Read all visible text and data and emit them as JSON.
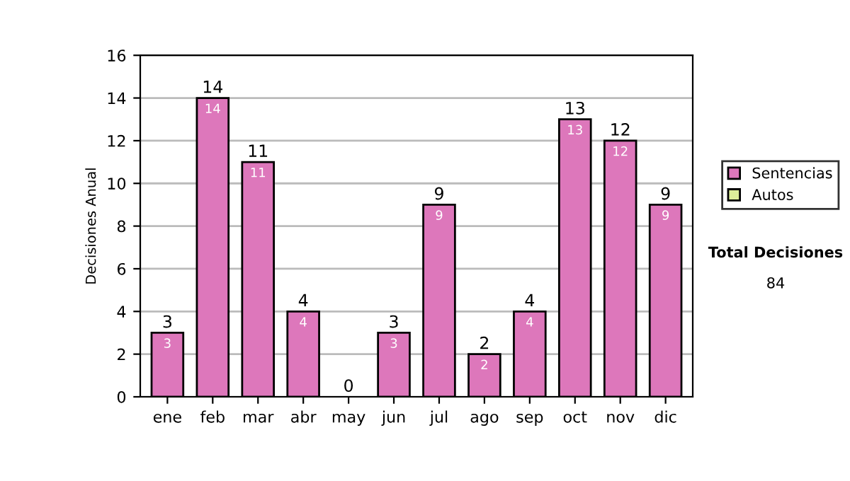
{
  "chart_data": {
    "type": "bar",
    "ylabel": "Decisiones Anual",
    "categories": [
      "ene",
      "feb",
      "mar",
      "abr",
      "may",
      "jun",
      "jul",
      "ago",
      "sep",
      "oct",
      "nov",
      "dic"
    ],
    "stacked": true,
    "series": [
      {
        "name": "Sentencias",
        "color": "#dd77bb",
        "values": [
          3,
          14,
          11,
          4,
          0,
          3,
          9,
          2,
          4,
          13,
          12,
          9
        ],
        "value_labels": [
          "3",
          "14",
          "11",
          "4",
          null,
          "3",
          "9",
          "2",
          "4",
          "13",
          "12",
          "9"
        ]
      },
      {
        "name": "Autos",
        "color": "#ddee99",
        "values": [
          0,
          0,
          0,
          0,
          0,
          0,
          0,
          0,
          0,
          0,
          0,
          0
        ]
      }
    ],
    "totals": [
      "3",
      "14",
      "11",
      "4",
      "0",
      "3",
      "9",
      "2",
      "4",
      "13",
      "12",
      "9"
    ],
    "ylim": [
      0,
      16
    ],
    "yticks": [
      0,
      2,
      4,
      6,
      8,
      10,
      12,
      14,
      16
    ],
    "grid": "y",
    "legend": "right",
    "annotations": [
      "Total Decisiones",
      "84"
    ]
  }
}
